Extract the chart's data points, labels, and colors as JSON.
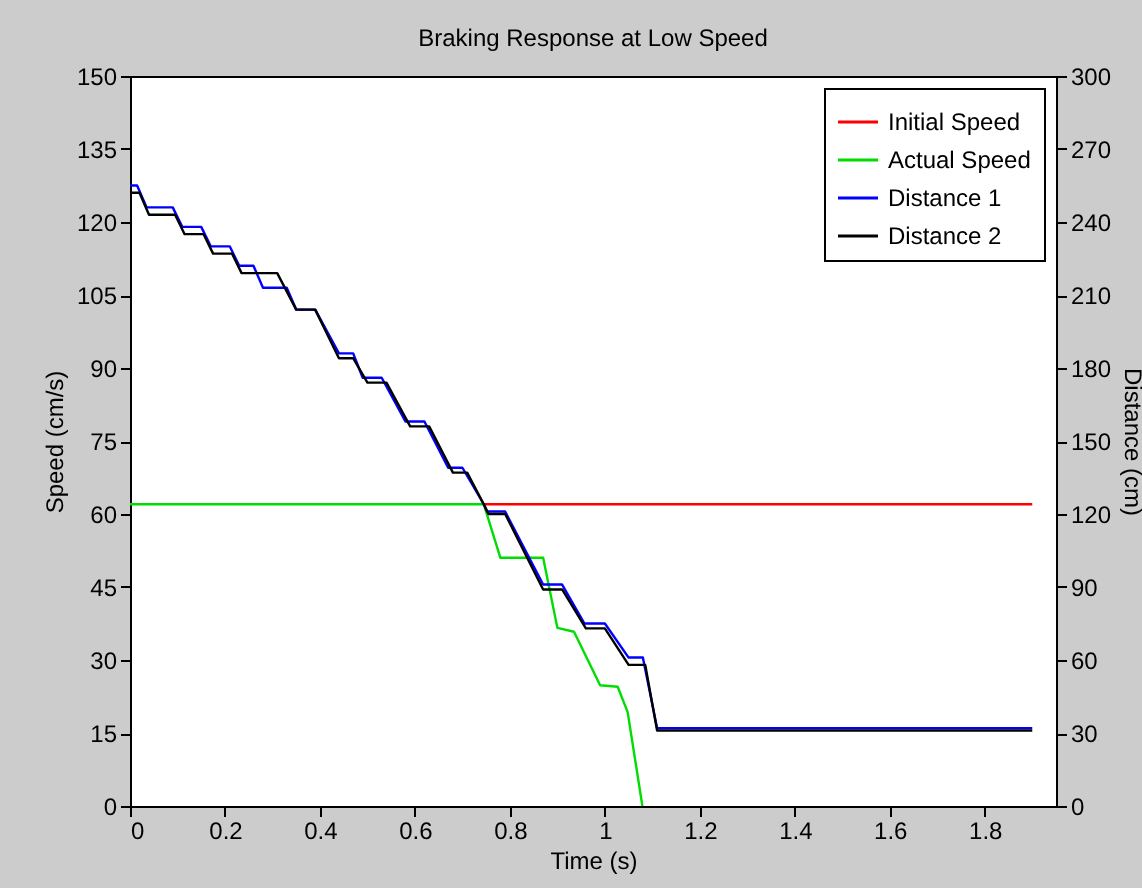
{
  "chart_data": {
    "type": "line",
    "title": "Braking Response at Low Speed",
    "xlabel": "Time (s)",
    "ylabel": "Speed (cm/s)",
    "y2label": "Distance (cm)",
    "xlim": [
      0,
      1.95
    ],
    "xticks": [
      0,
      0.2,
      0.4,
      0.6,
      0.8,
      1,
      1.2,
      1.4,
      1.6,
      1.8
    ],
    "ylim": [
      0,
      150
    ],
    "yticks": [
      0,
      15,
      30,
      45,
      60,
      75,
      90,
      105,
      120,
      135,
      150
    ],
    "y2lim": [
      0,
      300
    ],
    "y2ticks": [
      0,
      30,
      60,
      90,
      120,
      150,
      180,
      210,
      240,
      270,
      300
    ],
    "legend": "top right",
    "grid": false,
    "line_style": "solid",
    "marker": "none",
    "series": [
      {
        "name": "Initial Speed",
        "color": "#ff0000",
        "x": [
          0.745,
          1.9
        ],
        "values": [
          62,
          62
        ]
      },
      {
        "name": "Actual Speed",
        "color": "#00dd00",
        "x": [
          0,
          0.745,
          0.78,
          0.87,
          0.9,
          0.935,
          0.99,
          1.027,
          1.048,
          1.079
        ],
        "values": [
          62,
          62,
          51,
          51,
          36.6,
          35.8,
          24.8,
          24.5,
          19.3,
          0
        ]
      },
      {
        "name": "Distance 1",
        "color": "#0000ff",
        "axis": "y2",
        "x": [
          0,
          0.015,
          0.035,
          0.09,
          0.11,
          0.15,
          0.17,
          0.21,
          0.23,
          0.26,
          0.28,
          0.33,
          0.35,
          0.39,
          0.44,
          0.47,
          0.49,
          0.53,
          0.58,
          0.62,
          0.67,
          0.7,
          0.745,
          0.752,
          0.79,
          0.87,
          0.91,
          0.957,
          1.0,
          1.05,
          1.08,
          1.11,
          1.9
        ],
        "values": [
          255,
          255,
          246,
          246,
          238,
          238,
          230,
          230,
          222,
          222,
          213,
          213,
          204,
          204,
          186,
          186,
          176,
          176,
          158,
          158,
          139,
          139,
          124,
          121,
          121,
          91,
          91,
          75,
          75,
          61,
          61,
          32,
          32
        ]
      },
      {
        "name": "Distance 2",
        "color": "#000000",
        "axis": "y2",
        "x": [
          0,
          0.02,
          0.04,
          0.095,
          0.115,
          0.155,
          0.175,
          0.215,
          0.235,
          0.31,
          0.35,
          0.39,
          0.44,
          0.47,
          0.5,
          0.54,
          0.59,
          0.63,
          0.68,
          0.71,
          0.745,
          0.755,
          0.79,
          0.87,
          0.91,
          0.96,
          1.0,
          1.05,
          1.085,
          1.11,
          1.9
        ],
        "values": [
          252,
          252,
          243,
          243,
          235,
          235,
          227,
          227,
          219,
          219,
          204,
          204,
          184,
          184,
          174,
          174,
          156,
          156,
          137,
          137,
          124,
          120,
          120,
          89,
          89,
          73,
          73,
          58,
          58,
          31,
          31
        ]
      }
    ]
  }
}
